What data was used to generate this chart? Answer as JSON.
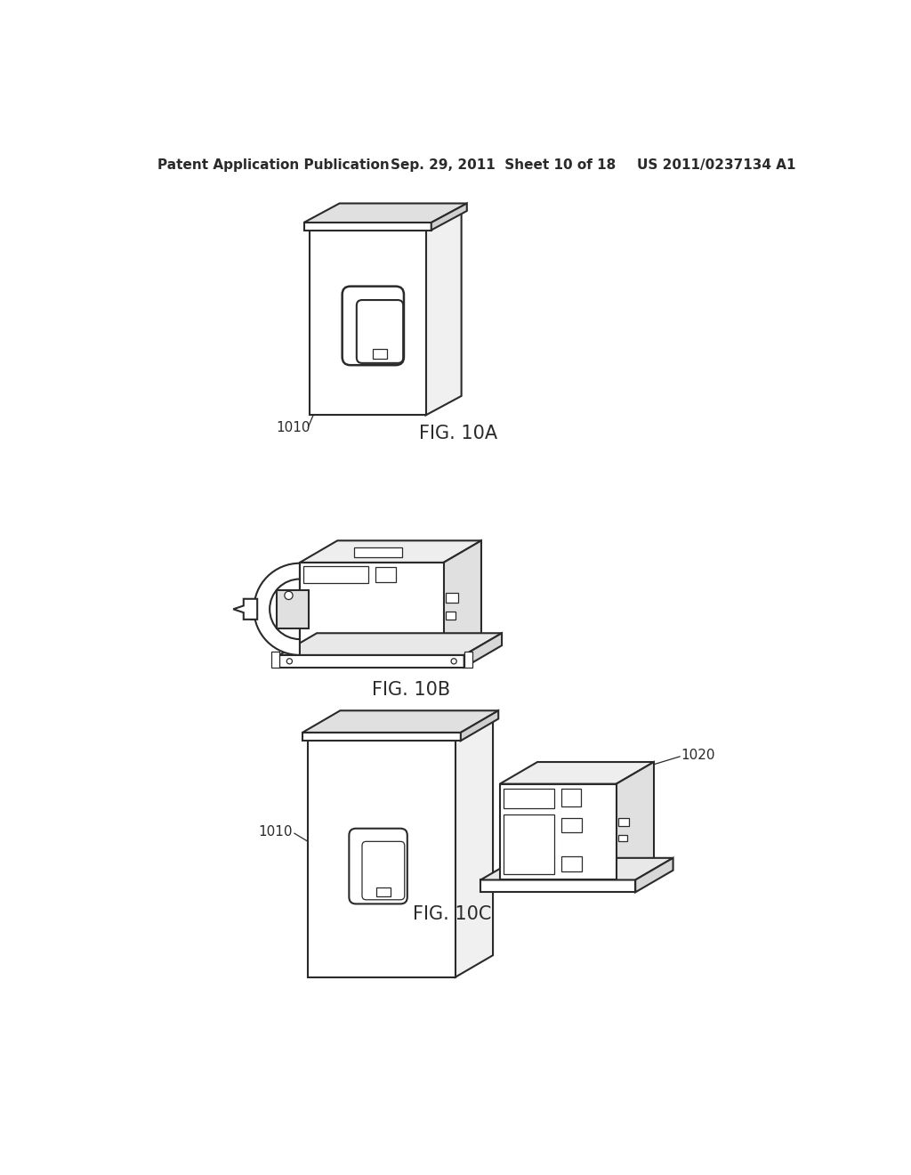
{
  "background_color": "#ffffff",
  "header_left": "Patent Application Publication",
  "header_center": "Sep. 29, 2011  Sheet 10 of 18",
  "header_right": "US 2011/0237134 A1",
  "line_color": "#2a2a2a",
  "line_width": 1.5,
  "thin_lw": 0.9,
  "fig_label_fontsize": 15,
  "ref_fontsize": 11,
  "header_fontsize": 11
}
